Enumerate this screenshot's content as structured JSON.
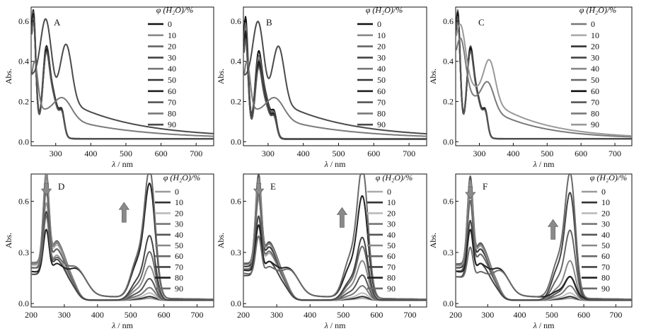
{
  "chart_data": [
    {
      "panel": "A",
      "type": "line",
      "xlabel_symbol": "λ",
      "xlabel_unit": "/ nm",
      "ylabel": "Abs.",
      "xlim": [
        230,
        750
      ],
      "ylim": [
        -0.02,
        0.67
      ],
      "xticks": [
        300,
        400,
        500,
        600,
        700
      ],
      "yticks": [
        "0.0",
        "0.2",
        "0.4",
        "0.6"
      ],
      "ytick_values": [
        0.0,
        0.2,
        0.4,
        0.6
      ],
      "legend_title": "φ (H₂O)/%",
      "legend_placement": "right",
      "series": [
        {
          "name": "0",
          "color": "#111111",
          "width": 2.2,
          "profile": "sharp",
          "scale": 1.0
        },
        {
          "name": "10",
          "color": "#888888",
          "width": 2.0,
          "profile": "sharp",
          "scale": 0.98
        },
        {
          "name": "20",
          "color": "#666666",
          "width": 2.0,
          "profile": "sharp",
          "scale": 0.97
        },
        {
          "name": "30",
          "color": "#444444",
          "width": 2.0,
          "profile": "sharp",
          "scale": 0.99
        },
        {
          "name": "40",
          "color": "#777777",
          "width": 2.0,
          "profile": "sharp",
          "scale": 0.96
        },
        {
          "name": "50",
          "color": "#333333",
          "width": 2.0,
          "profile": "sharp",
          "scale": 0.95
        },
        {
          "name": "60",
          "color": "#222222",
          "width": 2.0,
          "profile": "sharp",
          "scale": 0.97
        },
        {
          "name": "70",
          "color": "#555555",
          "width": 2.0,
          "profile": "sharp",
          "scale": 0.94
        },
        {
          "name": "80",
          "color": "#7a7a7a",
          "width": 2.0,
          "profile": "broadlow",
          "scale": 1.0
        },
        {
          "name": "90",
          "color": "#4a4a4a",
          "width": 2.0,
          "profile": "broadhigh",
          "scale": 1.0
        }
      ]
    },
    {
      "panel": "B",
      "type": "line",
      "xlabel_symbol": "λ",
      "xlabel_unit": "/ nm",
      "ylabel": "Abs.",
      "xlim": [
        230,
        750
      ],
      "ylim": [
        -0.02,
        0.67
      ],
      "xticks": [
        300,
        400,
        500,
        600,
        700
      ],
      "yticks": [
        "0.0",
        "0.2",
        "0.4",
        "0.6"
      ],
      "ytick_values": [
        0.0,
        0.2,
        0.4,
        0.6
      ],
      "legend_title": "φ (H₂O)/%",
      "legend_placement": "right",
      "series": [
        {
          "name": "0",
          "color": "#111111",
          "width": 2.0,
          "profile": "sharp",
          "scale": 0.95
        },
        {
          "name": "10",
          "color": "#888888",
          "width": 2.0,
          "profile": "sharp",
          "scale": 0.85
        },
        {
          "name": "20",
          "color": "#666666",
          "width": 2.0,
          "profile": "sharp",
          "scale": 0.9
        },
        {
          "name": "30",
          "color": "#444444",
          "width": 2.0,
          "profile": "sharp",
          "scale": 0.8
        },
        {
          "name": "40",
          "color": "#777777",
          "width": 2.0,
          "profile": "sharp",
          "scale": 0.86
        },
        {
          "name": "50",
          "color": "#333333",
          "width": 2.0,
          "profile": "sharp",
          "scale": 0.82
        },
        {
          "name": "60",
          "color": "#222222",
          "width": 2.0,
          "profile": "sharp",
          "scale": 0.84
        },
        {
          "name": "70",
          "color": "#555555",
          "width": 2.0,
          "profile": "sharp",
          "scale": 0.78
        },
        {
          "name": "80",
          "color": "#7a7a7a",
          "width": 2.0,
          "profile": "broadlow",
          "scale": 1.0
        },
        {
          "name": "90",
          "color": "#4a4a4a",
          "width": 2.0,
          "profile": "broadhigh",
          "scale": 0.98
        }
      ]
    },
    {
      "panel": "C",
      "type": "line",
      "xlabel_symbol": "λ",
      "xlabel_unit": "/ nm",
      "ylabel": "Abs.",
      "xlim": [
        230,
        750
      ],
      "ylim": [
        -0.02,
        0.67
      ],
      "xticks": [
        300,
        400,
        500,
        600,
        700
      ],
      "yticks": [
        "0.0",
        "0.2",
        "0.4",
        "0.6"
      ],
      "ytick_values": [
        0.0,
        0.2,
        0.4,
        0.6
      ],
      "legend_title": "φ (H₂O)/%",
      "legend_placement": "right",
      "series": [
        {
          "name": "0",
          "color": "#777777",
          "width": 2.2,
          "profile": "sharp",
          "scale": 1.0
        },
        {
          "name": "10",
          "color": "#aaaaaa",
          "width": 2.0,
          "profile": "sharp",
          "scale": 0.97
        },
        {
          "name": "20",
          "color": "#333333",
          "width": 2.0,
          "profile": "sharp",
          "scale": 0.98
        },
        {
          "name": "30",
          "color": "#444444",
          "width": 2.0,
          "profile": "sharp",
          "scale": 0.99
        },
        {
          "name": "40",
          "color": "#888888",
          "width": 2.0,
          "profile": "sharp",
          "scale": 0.96
        },
        {
          "name": "50",
          "color": "#666666",
          "width": 2.0,
          "profile": "sharp",
          "scale": 0.97
        },
        {
          "name": "60",
          "color": "#111111",
          "width": 2.0,
          "profile": "sharp",
          "scale": 0.98
        },
        {
          "name": "70",
          "color": "#555555",
          "width": 2.0,
          "profile": "sharp",
          "scale": 0.95
        },
        {
          "name": "80",
          "color": "#7a7a7a",
          "width": 2.0,
          "profile": "broadlowC",
          "scale": 1.0
        },
        {
          "name": "90",
          "color": "#999999",
          "width": 2.0,
          "profile": "broadhighC",
          "scale": 1.0
        }
      ]
    },
    {
      "panel": "D",
      "type": "line",
      "xlabel_symbol": "λ",
      "xlabel_unit": "/ nm",
      "ylabel": "Abs.",
      "xlim": [
        200,
        750
      ],
      "ylim": [
        -0.02,
        0.76
      ],
      "xticks": [
        200,
        300,
        400,
        500,
        600,
        700
      ],
      "yticks": [
        "0.0",
        "0.3",
        "0.6"
      ],
      "ytick_values": [
        0.0,
        0.3,
        0.6
      ],
      "legend_title": "φ (H₂O)/%",
      "legend_placement": "right",
      "arrows": [
        {
          "direction": "down",
          "x_nm": 246,
          "y_abs": 0.66
        },
        {
          "direction": "up",
          "x_nm": 480,
          "y_abs": 0.56
        }
      ],
      "series": [
        {
          "name": "0",
          "color": "#999999",
          "width": 2.0,
          "uv": 0.44,
          "band": 0.01
        },
        {
          "name": "10",
          "color": "#333333",
          "width": 2.0,
          "uv": 0.5,
          "band": 0.02
        },
        {
          "name": "20",
          "color": "#bbbbbb",
          "width": 2.0,
          "uv": 0.54,
          "band": 0.04
        },
        {
          "name": "30",
          "color": "#777777",
          "width": 2.0,
          "uv": 0.56,
          "band": 0.07
        },
        {
          "name": "40",
          "color": "#555555",
          "width": 2.0,
          "uv": 0.58,
          "band": 0.12
        },
        {
          "name": "50",
          "color": "#888888",
          "width": 2.0,
          "uv": 0.57,
          "band": 0.19
        },
        {
          "name": "60",
          "color": "#666666",
          "width": 2.0,
          "uv": 0.5,
          "band": 0.27
        },
        {
          "name": "70",
          "color": "#444444",
          "width": 2.0,
          "uv": 0.4,
          "band": 0.36
        },
        {
          "name": "80",
          "color": "#222222",
          "width": 2.0,
          "uv": 0.28,
          "band": 0.64
        },
        {
          "name": "90",
          "color": "#6a6a6a",
          "width": 2.0,
          "uv": 0.34,
          "band": 0.72
        }
      ]
    },
    {
      "panel": "E",
      "type": "line",
      "xlabel_symbol": "λ",
      "xlabel_unit": "/ nm",
      "ylabel": "Abs.",
      "xlim": [
        200,
        750
      ],
      "ylim": [
        -0.02,
        0.76
      ],
      "xticks": [
        200,
        300,
        400,
        500,
        600,
        700
      ],
      "yticks": [
        "0.0",
        "0.3",
        "0.6"
      ],
      "ytick_values": [
        0.0,
        0.3,
        0.6
      ],
      "legend_title": "φ (H₂O)/%",
      "legend_placement": "right",
      "arrows": [
        {
          "direction": "down",
          "x_nm": 246,
          "y_abs": 0.66
        },
        {
          "direction": "up",
          "x_nm": 496,
          "y_abs": 0.53
        }
      ],
      "series": [
        {
          "name": "0",
          "color": "#aaaaaa",
          "width": 2.0,
          "uv": 0.46,
          "band": 0.01
        },
        {
          "name": "10",
          "color": "#333333",
          "width": 2.0,
          "uv": 0.52,
          "band": 0.02
        },
        {
          "name": "20",
          "color": "#bbbbbb",
          "width": 2.0,
          "uv": 0.55,
          "band": 0.04
        },
        {
          "name": "30",
          "color": "#777777",
          "width": 2.0,
          "uv": 0.56,
          "band": 0.08
        },
        {
          "name": "40",
          "color": "#555555",
          "width": 2.0,
          "uv": 0.57,
          "band": 0.14
        },
        {
          "name": "50",
          "color": "#888888",
          "width": 2.0,
          "uv": 0.55,
          "band": 0.22
        },
        {
          "name": "60",
          "color": "#666666",
          "width": 2.0,
          "uv": 0.48,
          "band": 0.3
        },
        {
          "name": "70",
          "color": "#444444",
          "width": 2.0,
          "uv": 0.38,
          "band": 0.35
        },
        {
          "name": "80",
          "color": "#222222",
          "width": 2.0,
          "uv": 0.3,
          "band": 0.57
        },
        {
          "name": "90",
          "color": "#6a6a6a",
          "width": 2.0,
          "uv": 0.25,
          "band": 0.73
        }
      ]
    },
    {
      "panel": "F",
      "type": "line",
      "xlabel_symbol": "λ",
      "xlabel_unit": "/ nm",
      "ylabel": "Abs.",
      "xlim": [
        200,
        750
      ],
      "ylim": [
        -0.02,
        0.76
      ],
      "xticks": [
        200,
        300,
        400,
        500,
        600,
        700
      ],
      "yticks": [
        "0.0",
        "0.3",
        "0.6"
      ],
      "ytick_values": [
        0.0,
        0.3,
        0.6
      ],
      "legend_title": "φ (H₂O)/%",
      "legend_placement": "right",
      "arrows": [
        {
          "direction": "down",
          "x_nm": 246,
          "y_abs": 0.64
        },
        {
          "direction": "up",
          "x_nm": 504,
          "y_abs": 0.46
        }
      ],
      "series": [
        {
          "name": "0",
          "color": "#999999",
          "width": 2.0,
          "uv": 0.45,
          "band": 0.01
        },
        {
          "name": "10",
          "color": "#333333",
          "width": 2.0,
          "uv": 0.5,
          "band": 0.02
        },
        {
          "name": "20",
          "color": "#bbbbbb",
          "width": 2.0,
          "uv": 0.53,
          "band": 0.04
        },
        {
          "name": "30",
          "color": "#777777",
          "width": 2.0,
          "uv": 0.55,
          "band": 0.08
        },
        {
          "name": "40",
          "color": "#555555",
          "width": 2.0,
          "uv": 0.56,
          "band": 0.13
        },
        {
          "name": "50",
          "color": "#888888",
          "width": 2.0,
          "uv": 0.54,
          "band": 0.22
        },
        {
          "name": "60",
          "color": "#666666",
          "width": 2.0,
          "uv": 0.45,
          "band": 0.39
        },
        {
          "name": "70",
          "color": "#444444",
          "width": 2.0,
          "uv": 0.36,
          "band": 0.6
        },
        {
          "name": "80",
          "color": "#222222",
          "width": 2.0,
          "uv": 0.28,
          "band": 0.12
        },
        {
          "name": "90",
          "color": "#6a6a6a",
          "width": 2.0,
          "uv": 0.2,
          "band": 0.7
        }
      ]
    }
  ]
}
